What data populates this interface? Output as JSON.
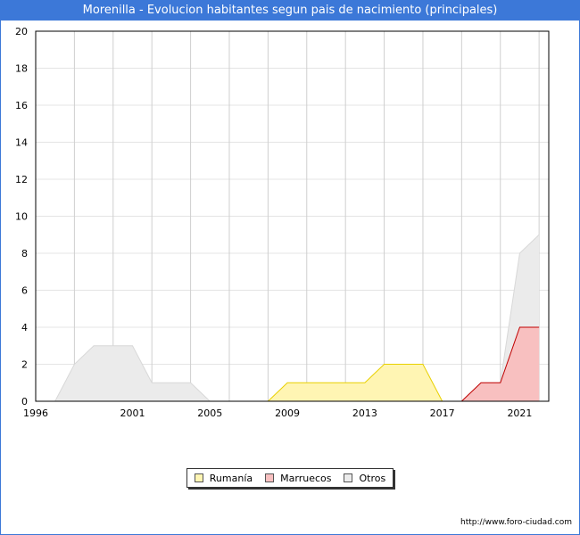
{
  "header": {
    "title": "Morenilla - Evolucion habitantes segun pais de nacimiento (principales)"
  },
  "footer": {
    "credit": "http://www.foro-ciudad.com"
  },
  "chart_data": {
    "type": "area",
    "title": "Morenilla - Evolucion habitantes segun pais de nacimiento (principales)",
    "xlabel": "",
    "ylabel": "",
    "xlim": [
      1996,
      2022.5
    ],
    "ylim": [
      0,
      20
    ],
    "x_ticks": [
      1996,
      2001,
      2005,
      2009,
      2013,
      2017,
      2021
    ],
    "y_ticks": [
      0,
      2,
      4,
      6,
      8,
      10,
      12,
      14,
      16,
      18,
      20
    ],
    "grid": true,
    "legend_position": "bottom-center",
    "x": [
      1996,
      1997,
      1998,
      1999,
      2000,
      2001,
      2002,
      2003,
      2004,
      2005,
      2006,
      2007,
      2008,
      2009,
      2010,
      2011,
      2012,
      2013,
      2014,
      2015,
      2016,
      2017,
      2018,
      2019,
      2020,
      2021,
      2022
    ],
    "series": [
      {
        "name": "Rumanía",
        "color": "#fff5b3",
        "line": "#e8d000",
        "values": [
          0,
          0,
          0,
          0,
          0,
          0,
          0,
          0,
          0,
          0,
          0,
          0,
          0,
          1,
          1,
          1,
          1,
          1,
          2,
          2,
          2,
          0,
          0,
          0,
          0,
          0,
          0
        ]
      },
      {
        "name": "Marruecos",
        "color": "#f8c0c0",
        "line": "#c00000",
        "values": [
          0,
          0,
          0,
          0,
          0,
          0,
          0,
          0,
          0,
          0,
          0,
          0,
          0,
          0,
          0,
          0,
          0,
          0,
          0,
          0,
          0,
          0,
          0,
          1,
          1,
          4,
          4
        ]
      },
      {
        "name": "Otros",
        "color": "#ebebeb",
        "line": "#d8d8d8",
        "values": [
          0,
          0,
          2,
          3,
          3,
          3,
          1,
          1,
          1,
          0,
          0,
          0,
          0,
          0,
          0,
          0,
          0,
          0,
          0,
          0,
          0,
          0,
          0,
          1,
          1,
          8,
          9
        ]
      }
    ]
  }
}
